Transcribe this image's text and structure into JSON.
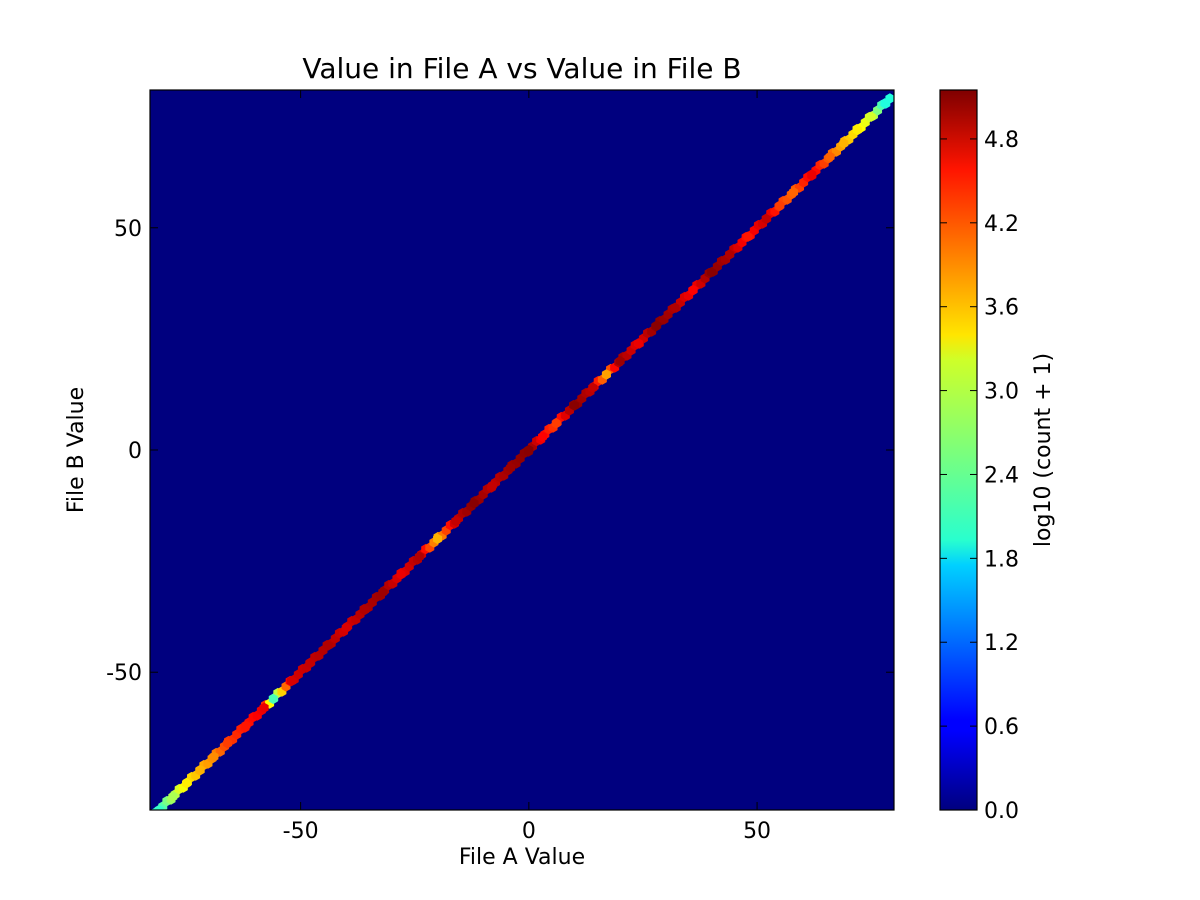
{
  "chart_data": {
    "type": "heatmap",
    "subtype": "hexbin",
    "title": "Value in File A vs Value in File B",
    "xlabel": "File A Value",
    "ylabel": "File B Value",
    "xlim": [
      -83,
      80
    ],
    "ylim": [
      -81,
      81
    ],
    "xticks": [
      -50,
      0,
      50
    ],
    "yticks": [
      -50,
      0,
      50
    ],
    "background_color": "#00007f",
    "colorbar": {
      "label": "log10 (count + 1)",
      "range": [
        0,
        5.15
      ],
      "ticks": [
        0.0,
        0.6,
        1.2,
        1.8,
        2.4,
        3.0,
        3.6,
        4.2,
        4.8
      ],
      "tick_labels": [
        "0.0",
        "0.6",
        "1.2",
        "1.8",
        "2.4",
        "3.0",
        "3.6",
        "4.2",
        "4.8"
      ],
      "colormap": "jet"
    },
    "diagonal_density": {
      "description_of_relation": "y = x",
      "points": [
        {
          "x": -81,
          "value": 2.2
        },
        {
          "x": -78,
          "value": 2.8
        },
        {
          "x": -75,
          "value": 3.3
        },
        {
          "x": -72,
          "value": 3.6
        },
        {
          "x": -69,
          "value": 3.8
        },
        {
          "x": -66,
          "value": 4.2
        },
        {
          "x": -62,
          "value": 4.4
        },
        {
          "x": -58,
          "value": 4.6
        },
        {
          "x": -56,
          "value": 2.3
        },
        {
          "x": -52,
          "value": 4.7
        },
        {
          "x": -48,
          "value": 4.8
        },
        {
          "x": -44,
          "value": 4.9
        },
        {
          "x": -40,
          "value": 4.7
        },
        {
          "x": -36,
          "value": 4.9
        },
        {
          "x": -32,
          "value": 5.0
        },
        {
          "x": -28,
          "value": 4.6
        },
        {
          "x": -24,
          "value": 4.9
        },
        {
          "x": -20,
          "value": 3.6
        },
        {
          "x": -16,
          "value": 4.8
        },
        {
          "x": -12,
          "value": 5.1
        },
        {
          "x": -8,
          "value": 4.8
        },
        {
          "x": -4,
          "value": 5.0
        },
        {
          "x": 0,
          "value": 5.1
        },
        {
          "x": 3,
          "value": 4.5
        },
        {
          "x": 6,
          "value": 4.2
        },
        {
          "x": 10,
          "value": 5.1
        },
        {
          "x": 14,
          "value": 4.8
        },
        {
          "x": 17,
          "value": 3.7
        },
        {
          "x": 20,
          "value": 5.0
        },
        {
          "x": 24,
          "value": 4.6
        },
        {
          "x": 28,
          "value": 5.1
        },
        {
          "x": 32,
          "value": 4.9
        },
        {
          "x": 36,
          "value": 4.5
        },
        {
          "x": 40,
          "value": 5.1
        },
        {
          "x": 44,
          "value": 4.9
        },
        {
          "x": 48,
          "value": 4.4
        },
        {
          "x": 52,
          "value": 4.8
        },
        {
          "x": 55,
          "value": 4.2
        },
        {
          "x": 58,
          "value": 4.0
        },
        {
          "x": 62,
          "value": 4.6
        },
        {
          "x": 66,
          "value": 4.0
        },
        {
          "x": 69,
          "value": 3.6
        },
        {
          "x": 72,
          "value": 3.3
        },
        {
          "x": 75,
          "value": 3.0
        },
        {
          "x": 78,
          "value": 2.1
        }
      ]
    }
  }
}
